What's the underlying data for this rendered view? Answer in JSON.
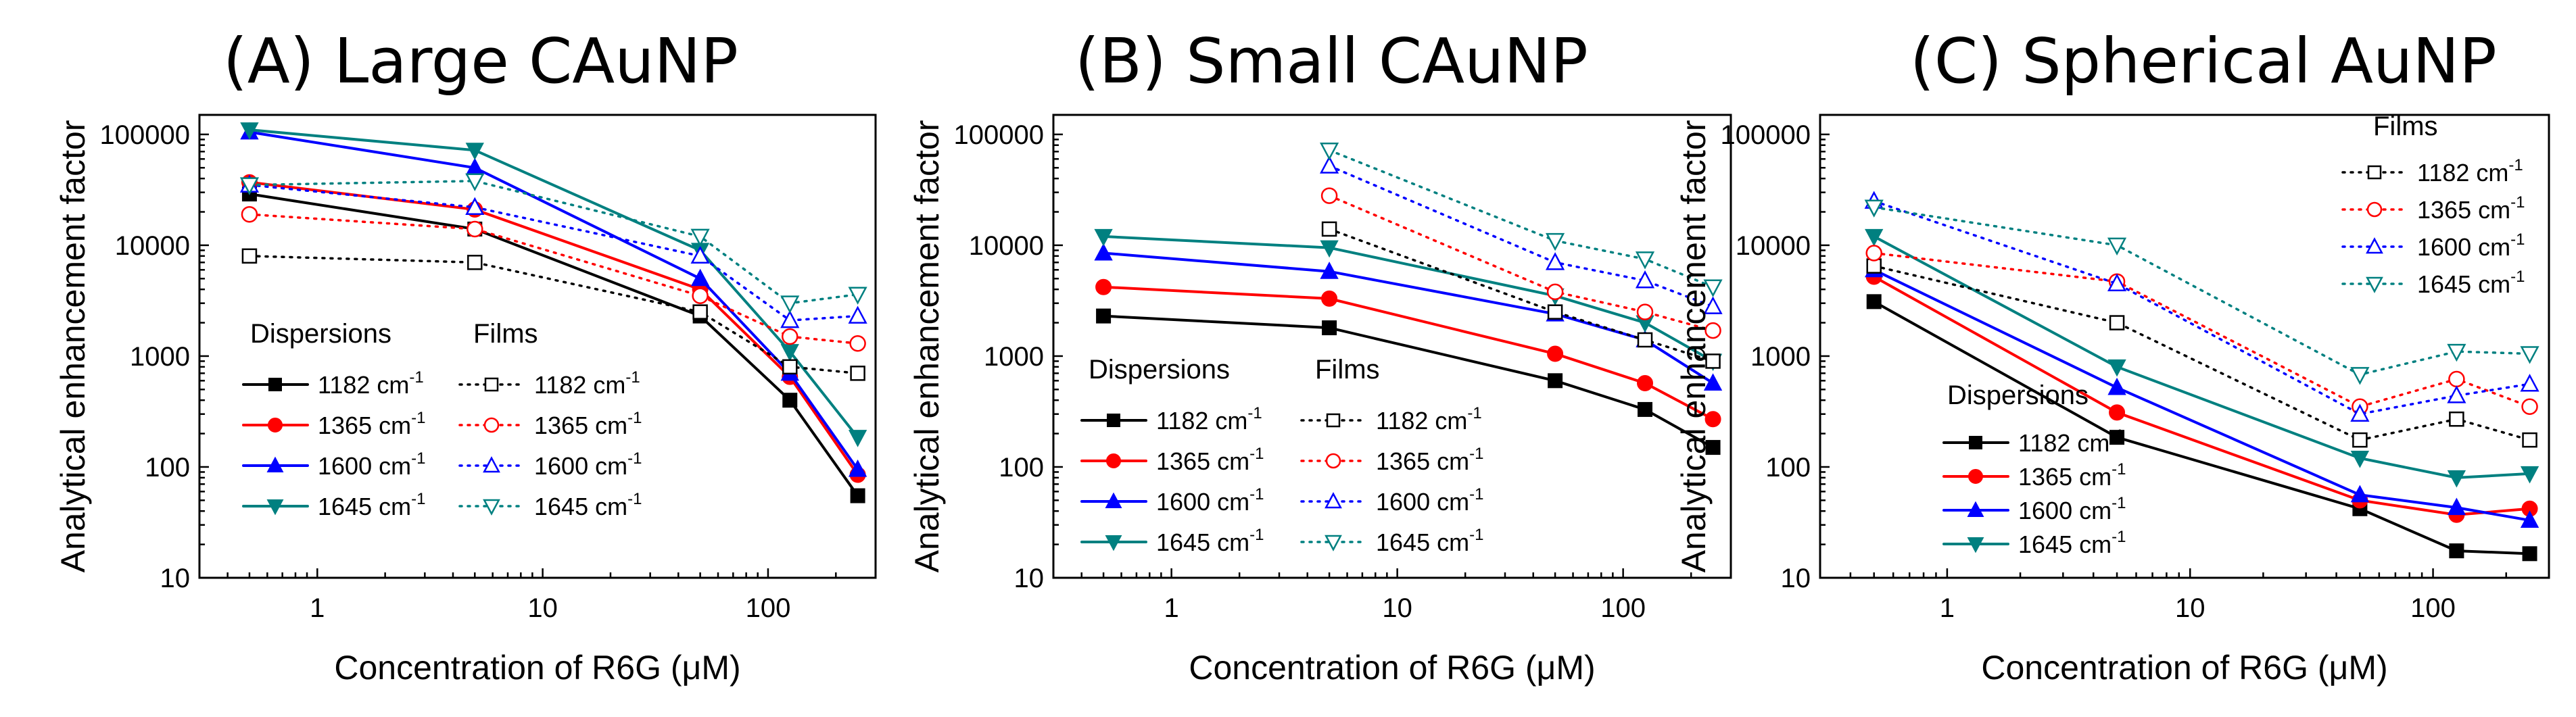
{
  "colors": {
    "1182": "#000000",
    "1365": "#ff0000",
    "1600": "#0000ff",
    "1645": "#008080"
  },
  "chart_data": [
    {
      "type": "line",
      "title": "(A) Large CAuNP",
      "xlabel": "Concentration of R6G (μM)",
      "ylabel": "Analytical enhancement factor",
      "xscale": "log",
      "yscale": "log",
      "xlim": [
        0.3,
        300
      ],
      "ylim": [
        10,
        150000
      ],
      "xticks": [
        "1",
        "10",
        "100"
      ],
      "yticks": [
        "10",
        "100",
        "1000",
        "10000",
        "100000"
      ],
      "x": [
        0.5,
        5,
        50,
        125,
        250
      ],
      "legend": {
        "dispersions_label": "Dispersions",
        "films_label": "Films",
        "placement": "lower-left"
      },
      "series": [
        {
          "name": "1182 cm-1",
          "group": "Dispersions",
          "wavenumber": "1182",
          "values": [
            29000,
            14000,
            2300,
            400,
            55
          ]
        },
        {
          "name": "1365 cm-1",
          "group": "Dispersions",
          "wavenumber": "1365",
          "values": [
            37000,
            21000,
            4000,
            650,
            85
          ]
        },
        {
          "name": "1600 cm-1",
          "group": "Dispersions",
          "wavenumber": "1600",
          "values": [
            105000,
            50000,
            5000,
            700,
            95
          ]
        },
        {
          "name": "1645 cm-1",
          "group": "Dispersions",
          "wavenumber": "1645",
          "values": [
            110000,
            72000,
            9000,
            1100,
            185
          ]
        },
        {
          "name": "1182 cm-1",
          "group": "Films",
          "wavenumber": "1182",
          "values": [
            8000,
            7000,
            2500,
            800,
            700
          ]
        },
        {
          "name": "1365 cm-1",
          "group": "Films",
          "wavenumber": "1365",
          "values": [
            19000,
            14000,
            3500,
            1500,
            1300
          ]
        },
        {
          "name": "1600 cm-1",
          "group": "Films",
          "wavenumber": "1600",
          "values": [
            35000,
            22000,
            8000,
            2100,
            2300
          ]
        },
        {
          "name": "1645 cm-1",
          "group": "Films",
          "wavenumber": "1645",
          "values": [
            35000,
            38000,
            12000,
            3000,
            3600
          ]
        }
      ]
    },
    {
      "type": "line",
      "title": "(B) Small CAuNP",
      "xlabel": "Concentration of R6G (μM)",
      "ylabel": "Analytical enhancement factor",
      "xscale": "log",
      "yscale": "log",
      "xlim": [
        0.3,
        300
      ],
      "ylim": [
        10,
        150000
      ],
      "xticks": [
        "1",
        "10",
        "100"
      ],
      "yticks": [
        "10",
        "100",
        "1000",
        "10000",
        "100000"
      ],
      "x": [
        0.5,
        5,
        50,
        125,
        250
      ],
      "legend": {
        "dispersions_label": "Dispersions",
        "films_label": "Films",
        "placement": "lower-left"
      },
      "series": [
        {
          "name": "1182 cm-1",
          "group": "Dispersions",
          "wavenumber": "1182",
          "values": [
            2300,
            1800,
            600,
            330,
            150
          ]
        },
        {
          "name": "1365 cm-1",
          "group": "Dispersions",
          "wavenumber": "1365",
          "values": [
            4200,
            3300,
            1050,
            570,
            270
          ]
        },
        {
          "name": "1600 cm-1",
          "group": "Dispersions",
          "wavenumber": "1600",
          "values": [
            8500,
            5800,
            2400,
            1400,
            570
          ]
        },
        {
          "name": "1645 cm-1",
          "group": "Dispersions",
          "wavenumber": "1645",
          "values": [
            12000,
            9500,
            3500,
            2000,
            900
          ]
        },
        {
          "name": "1182 cm-1",
          "group": "Films",
          "wavenumber": "1182",
          "values": [
            null,
            14000,
            2500,
            1400,
            900
          ]
        },
        {
          "name": "1365 cm-1",
          "group": "Films",
          "wavenumber": "1365",
          "values": [
            null,
            28000,
            3800,
            2500,
            1700
          ]
        },
        {
          "name": "1600 cm-1",
          "group": "Films",
          "wavenumber": "1600",
          "values": [
            null,
            52000,
            7000,
            4800,
            2800
          ]
        },
        {
          "name": "1645 cm-1",
          "group": "Films",
          "wavenumber": "1645",
          "values": [
            null,
            72000,
            11000,
            7500,
            4200
          ]
        }
      ]
    },
    {
      "type": "line",
      "title": "(C) Spherical AuNP",
      "xlabel": "Concentration of R6G (μM)",
      "ylabel": "Analytical enhancement factor",
      "xscale": "log",
      "yscale": "log",
      "xlim": [
        0.3,
        300
      ],
      "ylim": [
        10,
        150000
      ],
      "xticks": [
        "1",
        "10",
        "100"
      ],
      "yticks": [
        "10",
        "100",
        "1000",
        "10000",
        "100000"
      ],
      "x": [
        0.5,
        5,
        50,
        125,
        250
      ],
      "legend": {
        "dispersions_label": "Dispersions",
        "films_label": "Films",
        "placement": "split"
      },
      "series": [
        {
          "name": "1182 cm-1",
          "group": "Dispersions",
          "wavenumber": "1182",
          "values": [
            3100,
            185,
            42,
            17.5,
            16.5
          ]
        },
        {
          "name": "1365 cm-1",
          "group": "Dispersions",
          "wavenumber": "1365",
          "values": [
            5200,
            310,
            50,
            37,
            42
          ]
        },
        {
          "name": "1600 cm-1",
          "group": "Dispersions",
          "wavenumber": "1600",
          "values": [
            6000,
            520,
            56,
            43,
            33
          ]
        },
        {
          "name": "1645 cm-1",
          "group": "Dispersions",
          "wavenumber": "1645",
          "values": [
            12000,
            800,
            120,
            80,
            87
          ]
        },
        {
          "name": "1182 cm-1",
          "group": "Films",
          "wavenumber": "1182",
          "values": [
            6500,
            2000,
            175,
            270,
            175
          ]
        },
        {
          "name": "1365 cm-1",
          "group": "Films",
          "wavenumber": "1365",
          "values": [
            8500,
            4700,
            350,
            620,
            350
          ]
        },
        {
          "name": "1600 cm-1",
          "group": "Films",
          "wavenumber": "1600",
          "values": [
            25000,
            4500,
            300,
            440,
            560
          ]
        },
        {
          "name": "1645 cm-1",
          "group": "Films",
          "wavenumber": "1645",
          "values": [
            22000,
            10000,
            680,
            1100,
            1050
          ]
        }
      ]
    }
  ]
}
